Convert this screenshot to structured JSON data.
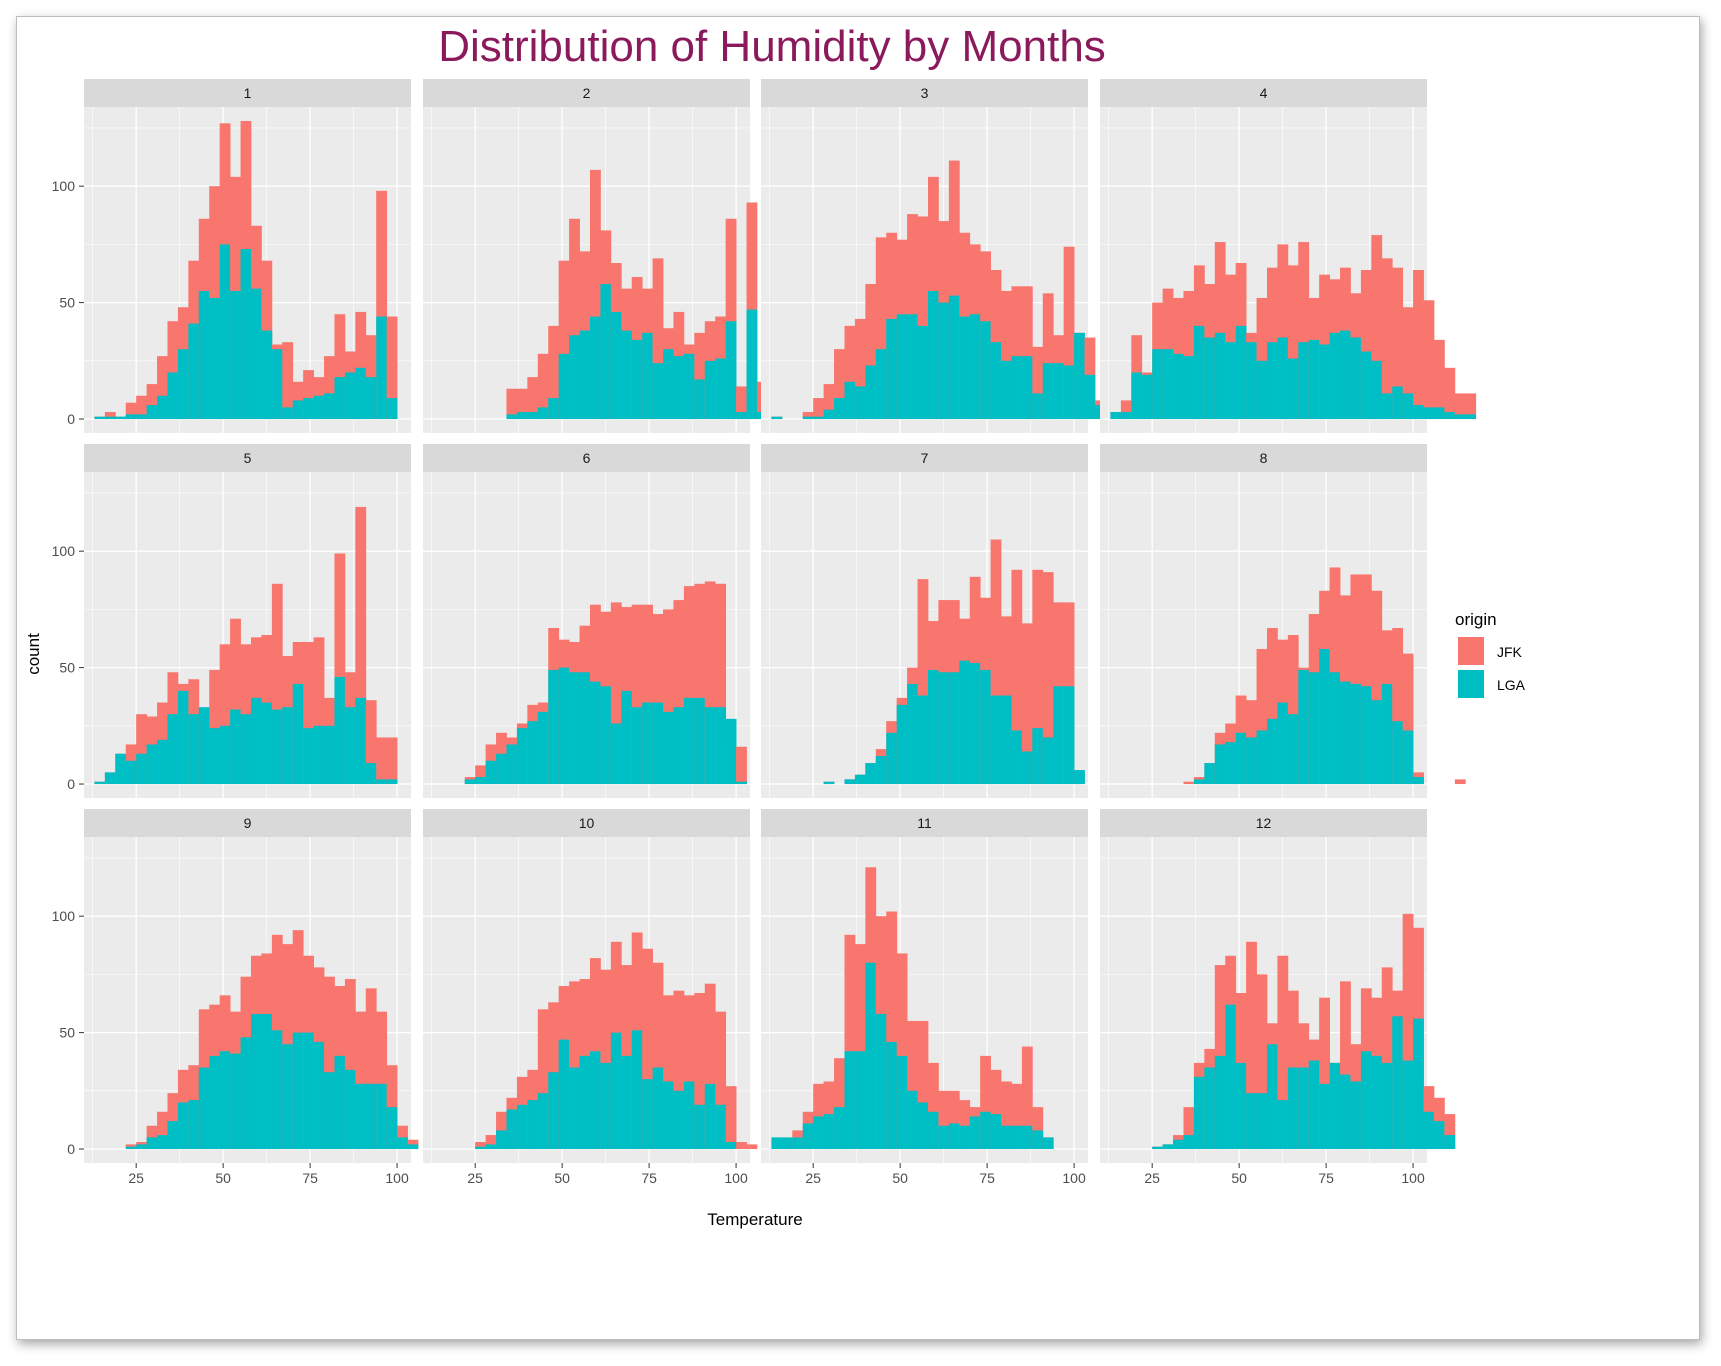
{
  "chart_data": {
    "type": "bar",
    "title": "Distribution of Humidity by Months",
    "xlabel": "Temperature",
    "ylabel": "count",
    "xlim": [
      10,
      104
    ],
    "ylim": [
      -6,
      134
    ],
    "x_ticks": [
      25,
      50,
      75,
      100
    ],
    "y_ticks": [
      0,
      50,
      100
    ],
    "bin_width": 3,
    "bin_start": 13,
    "stacked": true,
    "legend": {
      "title": "origin",
      "position": "right",
      "entries": [
        {
          "label": "JFK",
          "color": "#F8766D"
        },
        {
          "label": "LGA",
          "color": "#00BFC4"
        }
      ]
    },
    "colors": {
      "title": "#8B1A5C",
      "panel_bg": "#EBEBEB",
      "strip_bg": "#D9D9D9",
      "grid": "#FFFFFF",
      "JFK": "#F8766D",
      "LGA": "#00BFC4"
    },
    "panels": [
      {
        "label": "1",
        "total": [
          1,
          3,
          1,
          7,
          10,
          15,
          27,
          42,
          48,
          68,
          86,
          100,
          127,
          104,
          128,
          83,
          68,
          32,
          33,
          16,
          21,
          18,
          27,
          45,
          29,
          46,
          36,
          98,
          44
        ],
        "lga": [
          1,
          1,
          1,
          2,
          2,
          6,
          10,
          20,
          30,
          41,
          55,
          52,
          75,
          55,
          73,
          56,
          38,
          30,
          5,
          8,
          9,
          10,
          11,
          18,
          20,
          22,
          18,
          44,
          9
        ]
      },
      {
        "label": "2",
        "offset": 7,
        "total": [
          13,
          13,
          18,
          28,
          40,
          68,
          86,
          72,
          107,
          81,
          67,
          56,
          61,
          56,
          69,
          39,
          46,
          32,
          37,
          42,
          44,
          86,
          14,
          93,
          16,
          15
        ],
        "lga": [
          2,
          3,
          3,
          5,
          9,
          28,
          36,
          38,
          44,
          58,
          46,
          38,
          34,
          37,
          24,
          30,
          27,
          28,
          17,
          25,
          26,
          42,
          3,
          47,
          3,
          3
        ]
      },
      {
        "label": "3",
        "offset": 3,
        "total": [
          3,
          9,
          15,
          30,
          40,
          43,
          58,
          78,
          80,
          77,
          88,
          87,
          104,
          85,
          111,
          80,
          75,
          72,
          64,
          55,
          57,
          57,
          31,
          54,
          36,
          74,
          37,
          35,
          8,
          3
        ],
        "lga": [
          1,
          1,
          4,
          9,
          16,
          14,
          23,
          30,
          43,
          45,
          45,
          40,
          55,
          50,
          53,
          44,
          45,
          42,
          33,
          25,
          27,
          27,
          11,
          24,
          24,
          23,
          37,
          19,
          6,
          1
        ],
        "extra": [
          {
            "bin": 0,
            "total": 1,
            "lga": 1
          }
        ]
      },
      {
        "label": "4",
        "total": [
          3,
          8,
          36,
          20,
          50,
          56,
          52,
          55,
          66,
          58,
          76,
          62,
          67,
          37,
          52,
          65,
          75,
          66,
          76,
          52,
          62,
          60,
          65,
          54,
          64,
          79,
          69,
          65,
          48,
          64,
          51,
          34,
          22,
          11,
          11
        ],
        "lga": [
          3,
          3,
          20,
          19,
          30,
          30,
          28,
          27,
          40,
          35,
          37,
          33,
          40,
          33,
          25,
          33,
          35,
          26,
          33,
          34,
          32,
          37,
          38,
          35,
          29,
          25,
          11,
          14,
          11,
          6,
          5,
          5,
          3,
          2,
          2
        ]
      }
    ],
    "panels_row2": [
      {
        "label": "5",
        "total": [
          1,
          5,
          13,
          17,
          30,
          29,
          35,
          48,
          43,
          45,
          29,
          49,
          60,
          71,
          60,
          63,
          64,
          86,
          55,
          61,
          61,
          63,
          37,
          99,
          48,
          119,
          36,
          20,
          20
        ],
        "lga": [
          1,
          5,
          13,
          10,
          13,
          17,
          19,
          30,
          40,
          30,
          33,
          24,
          25,
          32,
          30,
          37,
          35,
          32,
          33,
          43,
          24,
          25,
          25,
          46,
          33,
          37,
          9,
          2,
          2
        ]
      },
      {
        "label": "6",
        "offset": 3,
        "total": [
          3,
          8,
          17,
          22,
          20,
          26,
          34,
          35,
          67,
          62,
          61,
          68,
          77,
          74,
          78,
          76,
          77,
          77,
          73,
          75,
          79,
          85,
          86,
          87,
          86,
          17,
          16
        ],
        "lga": [
          2,
          3,
          10,
          13,
          17,
          24,
          27,
          31,
          49,
          50,
          48,
          48,
          44,
          42,
          26,
          40,
          33,
          35,
          35,
          31,
          33,
          37,
          37,
          33,
          33,
          28,
          1
        ]
      },
      {
        "label": "7",
        "offset": 5,
        "total": [
          1,
          0,
          2,
          4,
          9,
          15,
          27,
          37,
          50,
          88,
          70,
          79,
          79,
          71,
          89,
          80,
          105,
          72,
          92,
          69,
          92,
          91,
          78,
          78,
          5
        ],
        "lga": [
          1,
          0,
          2,
          4,
          9,
          12,
          22,
          34,
          43,
          38,
          49,
          48,
          48,
          53,
          52,
          49,
          38,
          38,
          23,
          14,
          24,
          20,
          42,
          42,
          6
        ]
      },
      {
        "label": "8",
        "offset": 7,
        "total": [
          1,
          3,
          9,
          22,
          26,
          38,
          36,
          58,
          67,
          62,
          64,
          50,
          73,
          83,
          93,
          81,
          90,
          90,
          83,
          66,
          67,
          56,
          5,
          0,
          0,
          0,
          2
        ],
        "lga": [
          0,
          2,
          9,
          17,
          18,
          22,
          20,
          23,
          28,
          35,
          30,
          49,
          48,
          58,
          48,
          44,
          43,
          42,
          36,
          43,
          27,
          23,
          3,
          0,
          0,
          0,
          0
        ]
      }
    ],
    "panels_row3": [
      {
        "label": "9",
        "offset": 3,
        "total": [
          2,
          3,
          10,
          16,
          24,
          34,
          36,
          60,
          62,
          66,
          59,
          74,
          83,
          84,
          92,
          88,
          94,
          83,
          78,
          74,
          70,
          73,
          59,
          69,
          59,
          36,
          10,
          4
        ],
        "lga": [
          1,
          2,
          5,
          6,
          12,
          20,
          21,
          35,
          40,
          42,
          41,
          48,
          58,
          58,
          51,
          45,
          50,
          50,
          46,
          33,
          40,
          34,
          28,
          28,
          28,
          18,
          5,
          2
        ]
      },
      {
        "label": "10",
        "offset": 4,
        "total": [
          3,
          6,
          16,
          22,
          31,
          34,
          60,
          63,
          70,
          72,
          73,
          82,
          77,
          89,
          79,
          93,
          86,
          80,
          66,
          68,
          66,
          67,
          71,
          59,
          27,
          3,
          2
        ],
        "lga": [
          1,
          2,
          8,
          17,
          19,
          21,
          24,
          33,
          47,
          35,
          40,
          42,
          37,
          50,
          40,
          51,
          30,
          35,
          29,
          25,
          29,
          19,
          28,
          19,
          3,
          0,
          0
        ]
      },
      {
        "label": "11",
        "total": [
          3,
          3,
          8,
          16,
          28,
          29,
          39,
          92,
          88,
          121,
          100,
          102,
          84,
          55,
          55,
          37,
          25,
          25,
          21,
          18,
          40,
          34,
          29,
          28,
          44,
          18,
          5
        ],
        "lga": [
          5,
          5,
          5,
          11,
          14,
          15,
          18,
          42,
          42,
          80,
          58,
          46,
          40,
          25,
          20,
          16,
          10,
          11,
          10,
          14,
          16,
          15,
          10,
          10,
          10,
          8,
          5
        ]
      },
      {
        "label": "12",
        "offset": 4,
        "total": [
          1,
          2,
          6,
          18,
          37,
          43,
          79,
          83,
          67,
          89,
          75,
          54,
          83,
          68,
          54,
          47,
          65,
          37,
          72,
          45,
          69,
          65,
          78,
          68,
          101,
          95,
          27,
          22,
          15
        ],
        "lga": [
          1,
          2,
          4,
          6,
          31,
          35,
          40,
          62,
          37,
          24,
          24,
          45,
          21,
          35,
          35,
          38,
          28,
          37,
          32,
          29,
          42,
          40,
          37,
          57,
          38,
          56,
          16,
          12,
          6
        ]
      }
    ]
  }
}
